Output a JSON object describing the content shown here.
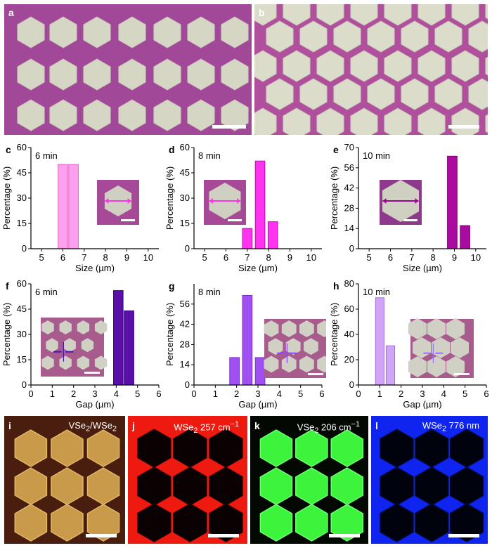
{
  "optical": [
    {
      "label": "a"
    },
    {
      "label": "b"
    }
  ],
  "charts": [
    {
      "label": "c",
      "duration": "6 min",
      "xlabel": "Size (µm)",
      "ylabel": "Percentage (%)",
      "xlim": [
        4.5,
        10.5
      ],
      "xticks": [
        "5",
        "6",
        "7",
        "8",
        "9",
        "10"
      ],
      "ylim": [
        0,
        60
      ],
      "yticks": [
        "0",
        "15",
        "30",
        "45",
        "60"
      ],
      "bar_color": "#ffa0ee",
      "edge_color": "#e060c8",
      "inset_arrow_color": "#ff33ee"
    },
    {
      "label": "d",
      "duration": "8 min",
      "xlabel": "Size (µm)",
      "ylabel": "Percentage (%)",
      "xlim": [
        4.5,
        10.5
      ],
      "xticks": [
        "5",
        "6",
        "7",
        "8",
        "9",
        "10"
      ],
      "ylim": [
        0,
        60
      ],
      "yticks": [
        "0",
        "15",
        "30",
        "45",
        "60"
      ],
      "bar_color": "#ff33f0",
      "edge_color": "#cc00c0",
      "inset_arrow_color": "#ff33ee"
    },
    {
      "label": "e",
      "duration": "10 min",
      "xlabel": "Size (µm)",
      "ylabel": "Percentage (%)",
      "xlim": [
        4.5,
        10.5
      ],
      "xticks": [
        "5",
        "6",
        "7",
        "8",
        "9",
        "10"
      ],
      "ylim": [
        0,
        70
      ],
      "yticks": [
        "0",
        "14",
        "28",
        "42",
        "56",
        "70"
      ],
      "bar_color": "#aa0aa0",
      "edge_color": "#7a0070",
      "inset_arrow_color": "#a0009a"
    },
    {
      "label": "f",
      "duration": "6 min",
      "xlabel": "Gap (µm)",
      "ylabel": "Percentage (%)",
      "xlim": [
        0,
        6
      ],
      "xticks": [
        "0",
        "1",
        "2",
        "3",
        "4",
        "5",
        "6"
      ],
      "ylim": [
        0,
        60
      ],
      "yticks": [
        "0",
        "15",
        "30",
        "45",
        "60"
      ],
      "bar_color": "#5a10a8",
      "edge_color": "#3a0080",
      "inset_arrow_color": "#4a10c0"
    },
    {
      "label": "g",
      "duration": "8 min",
      "xlabel": "Gap (µm)",
      "ylabel": "Percentage (%)",
      "xlim": [
        0,
        6
      ],
      "xticks": [
        "0",
        "1",
        "2",
        "3",
        "4",
        "5",
        "6"
      ],
      "ylim": [
        0,
        70
      ],
      "yticks": [
        "0",
        "14",
        "28",
        "42",
        "56"
      ],
      "bar_color": "#a050f0",
      "edge_color": "#7a30d0",
      "inset_arrow_color": "#8a44ff"
    },
    {
      "label": "h",
      "duration": "10 min",
      "xlabel": "Gap (µm)",
      "ylabel": "Percentage (%)",
      "xlim": [
        0,
        6
      ],
      "xticks": [
        "0",
        "1",
        "2",
        "3",
        "4",
        "5",
        "6"
      ],
      "ylim": [
        0,
        80
      ],
      "yticks": [
        "0",
        "20",
        "40",
        "60",
        "80"
      ],
      "bar_color": "#d2a4f8",
      "edge_color": "#a070e0",
      "inset_arrow_color": "#9a70ff"
    }
  ],
  "chart_data": [
    {
      "type": "bar",
      "x": [
        6.0,
        6.5
      ],
      "values": [
        50,
        50
      ],
      "bar_width": 0.45
    },
    {
      "type": "bar",
      "x": [
        7.0,
        7.6,
        8.2
      ],
      "values": [
        12,
        52,
        16
      ],
      "bar_width": 0.45
    },
    {
      "type": "bar",
      "x": [
        8.9,
        9.5
      ],
      "values": [
        64,
        16
      ],
      "bar_width": 0.45
    },
    {
      "type": "bar",
      "x": [
        4.1,
        4.6
      ],
      "values": [
        56,
        44
      ],
      "bar_width": 0.45
    },
    {
      "type": "bar",
      "x": [
        1.9,
        2.5,
        3.1
      ],
      "values": [
        19,
        62,
        19
      ],
      "bar_width": 0.45
    },
    {
      "type": "bar",
      "x": [
        1.0,
        1.5
      ],
      "values": [
        69,
        31
      ],
      "bar_width": 0.4
    }
  ],
  "maps": [
    {
      "label": "i",
      "title_main": "VSe",
      "title_sub1": "2",
      "title_mid": "/WSe",
      "title_sub2": "2",
      "title_tail": ""
    },
    {
      "label": "j",
      "title_main": "WSe",
      "title_sub1": "2",
      "title_mid": " 257 cm",
      "title_sub2": "",
      "title_tail": "−1"
    },
    {
      "label": "k",
      "title_main": "VSe",
      "title_sub1": "2",
      "title_mid": " 206 cm",
      "title_sub2": "",
      "title_tail": "−1"
    },
    {
      "label": "l",
      "title_main": "WSe",
      "title_sub1": "2",
      "title_mid": " 776 nm",
      "title_sub2": "",
      "title_tail": ""
    }
  ]
}
